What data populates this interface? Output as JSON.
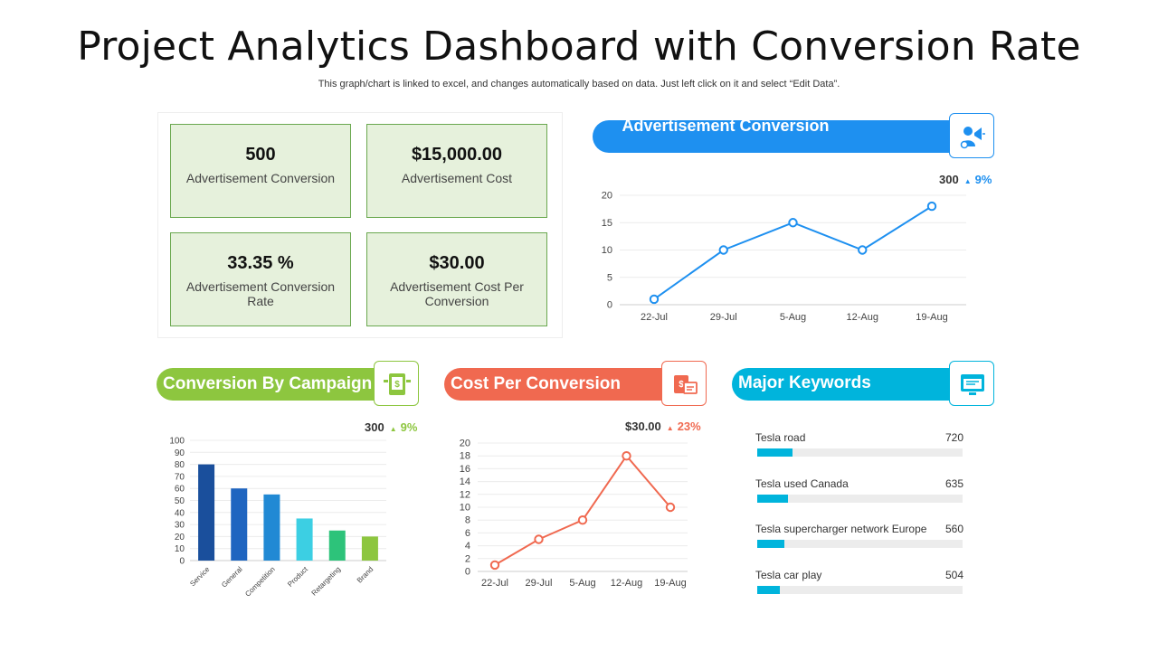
{
  "header": {
    "title": "Project Analytics Dashboard with Conversion Rate",
    "subtitle": "This graph/chart is linked to excel, and changes automatically based on data. Just left click on it and select “Edit Data”."
  },
  "kpis": [
    {
      "value": "500",
      "label": "Advertisement Conversion"
    },
    {
      "value": "$15,000.00",
      "label": "Advertisement Cost"
    },
    {
      "value": "33.35 %",
      "label": "Advertisement Conversion Rate"
    },
    {
      "value": "$30.00",
      "label": "Advertisement Cost Per Conversion"
    }
  ],
  "colors": {
    "blue": "#1e90f0",
    "green": "#8dc63f",
    "red": "#f06950",
    "cyan": "#00b4dc",
    "kpi_bg": "#e6f1dc",
    "kpi_border": "#6aa84f"
  },
  "ad_conversion": {
    "title": "Advertisement Conversion",
    "stat_value": "300",
    "stat_change": "9%",
    "icon": "megaphone-user-icon"
  },
  "campaign": {
    "title": "Conversion By Campaign",
    "stat_value": "300",
    "stat_change": "9%",
    "icon": "money-tablet-icon"
  },
  "cost": {
    "title": "Cost Per Conversion",
    "stat_value": "$30.00",
    "stat_change": "23%",
    "icon": "cost-device-icon"
  },
  "keywords": {
    "title": "Major Keywords",
    "icon": "web-browser-icon",
    "items": [
      {
        "label": "Tesla road",
        "value": "720",
        "level": 0.17
      },
      {
        "label": "Tesla used Canada",
        "value": "635",
        "level": 0.15
      },
      {
        "label": "Tesla supercharger network Europe",
        "value": "560",
        "level": 0.13
      },
      {
        "label": "Tesla car play",
        "value": "504",
        "level": 0.11
      }
    ]
  },
  "chart_data": [
    {
      "type": "line",
      "x": [
        "22-Jul",
        "29-Jul",
        "5-Aug",
        "12-Aug",
        "19-Aug"
      ],
      "series": [
        {
          "values": [
            1,
            10,
            15,
            10,
            18
          ]
        }
      ],
      "ylim": [
        0,
        20
      ],
      "yticks": [
        0,
        5,
        10,
        15,
        20
      ],
      "color": "#1e90f0",
      "grid": true
    },
    {
      "type": "bar",
      "categories": [
        "Service",
        "General",
        "Competition",
        "Product",
        "Retargeting",
        "Brand"
      ],
      "values": [
        80,
        60,
        55,
        35,
        25,
        20
      ],
      "bar_colors": [
        "#1a4f9c",
        "#1f65c0",
        "#2189d4",
        "#3ccfe3",
        "#2dc37a",
        "#8dc63f"
      ],
      "ylim": [
        0,
        100
      ],
      "yticks": [
        0,
        10,
        20,
        30,
        40,
        50,
        60,
        70,
        80,
        90,
        100
      ],
      "grid": true
    },
    {
      "type": "line",
      "x": [
        "22-Jul",
        "29-Jul",
        "5-Aug",
        "12-Aug",
        "19-Aug"
      ],
      "series": [
        {
          "values": [
            1,
            5,
            8,
            18,
            10
          ]
        }
      ],
      "ylim": [
        0,
        20
      ],
      "yticks": [
        0,
        2,
        4,
        6,
        8,
        10,
        12,
        14,
        16,
        18,
        20
      ],
      "color": "#f06950",
      "grid": true
    }
  ]
}
